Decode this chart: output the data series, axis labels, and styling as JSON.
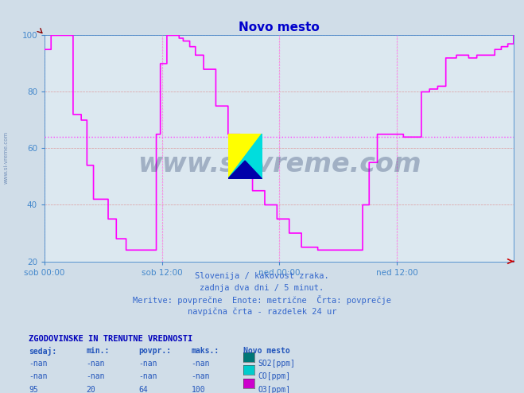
{
  "title": "Novo mesto",
  "title_color": "#0000cc",
  "bg_color": "#d0dde8",
  "plot_bg_color": "#dce8f0",
  "grid_color": "#dd8888",
  "avg_line_color": "#ff44ff",
  "avg_line_value": 64,
  "vline_color": "#ff88ff",
  "ylim": [
    20,
    100
  ],
  "yticks": [
    20,
    40,
    60,
    80,
    100
  ],
  "tick_color": "#4488cc",
  "o3_color": "#ff00ff",
  "o3_linewidth": 1.2,
  "subtitle_lines": [
    "Slovenija / kakovost zraka.",
    "zadnja dva dni / 5 minut.",
    "Meritve: povprečne  Enote: metrične  Črta: povprečje",
    "navpična črta - razdelek 24 ur"
  ],
  "table_header": "ZGODOVINSKE IN TRENUTNE VREDNOSTI",
  "table_cols": [
    "sedaj:",
    "min.:",
    "povpr.:",
    "maks.:",
    "Novo mesto"
  ],
  "table_rows": [
    [
      "-nan",
      "-nan",
      "-nan",
      "-nan",
      "SO2[ppm]",
      "#007777"
    ],
    [
      "-nan",
      "-nan",
      "-nan",
      "-nan",
      "CO[ppm]",
      "#00cccc"
    ],
    [
      "95",
      "20",
      "64",
      "100",
      "O3[ppm]",
      "#cc00cc"
    ]
  ],
  "xtick_labels": [
    "sob 00:00",
    "sob 12:00",
    "ned 00:00",
    "ned 12:00"
  ],
  "watermark_text": "www.si-vreme.com",
  "watermark_color": "#1a3060",
  "watermark_alpha": 0.3,
  "left_label": "www.si-vreme.com"
}
